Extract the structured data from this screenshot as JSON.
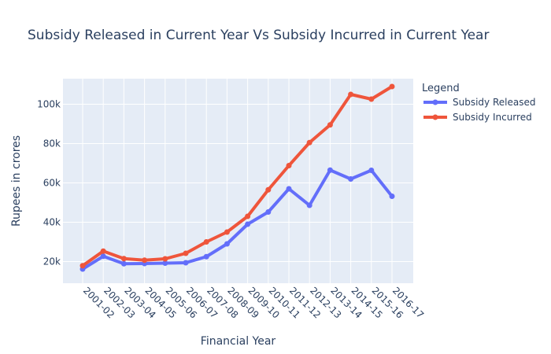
{
  "chart_data": {
    "type": "line",
    "title": "Subsidy Released in Current Year Vs Subsidy Incurred in Current Year",
    "xlabel": "Financial Year",
    "ylabel": "Rupees in crores",
    "categories": [
      "2001-02",
      "2002-03",
      "2003-04",
      "2004-05",
      "2005-06",
      "2006-07",
      "2007-08",
      "2008-09",
      "2009-10",
      "2010-11",
      "2011-12",
      "2012-13",
      "2013-14",
      "2014-15",
      "2015-16",
      "2016-17"
    ],
    "series": [
      {
        "name": "Subsidy Released",
        "color": "#636efa",
        "values": [
          16200,
          22700,
          18900,
          19000,
          19200,
          19400,
          22500,
          29000,
          39000,
          45200,
          57000,
          48600,
          66500,
          62000,
          66400,
          53200
        ]
      },
      {
        "name": "Subsidy Incurred",
        "color": "#ef553b",
        "values": [
          17900,
          25300,
          21500,
          20700,
          21400,
          24200,
          30000,
          35000,
          43000,
          56500,
          68800,
          80500,
          89500,
          105000,
          102600,
          109000
        ]
      }
    ],
    "ylim": [
      9000,
      113000
    ],
    "yticks": [
      20000,
      40000,
      60000,
      80000,
      100000
    ],
    "ytick_labels": [
      "20k",
      "40k",
      "60k",
      "80k",
      "100k"
    ],
    "grid": true,
    "legend": {
      "title": "Legend",
      "placement": "right"
    }
  }
}
